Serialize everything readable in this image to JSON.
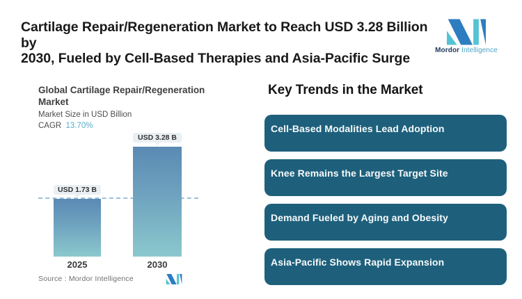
{
  "colors": {
    "banner_bg": "#1e607c",
    "accent_cagr": "#58abc8",
    "bar_gradient_top": "#5a8ab4",
    "bar_gradient_bottom": "#8bc8cd",
    "dashed_reference_line": "#9cc0da",
    "value_label_bg": "#e9eff3",
    "logo_blue": "#2e7dc0",
    "logo_teal": "#56c3d4"
  },
  "header": {
    "title_line1": "Cartilage Repair/Regeneration Market to Reach USD 3.28 Billion by",
    "title_line2": "2030, Fueled by Cell-Based Therapies and Asia-Pacific Surge",
    "logo": {
      "primary": "Mordor",
      "secondary": "Intelligence"
    }
  },
  "chart": {
    "title_line1": "Global Cartilage Repair/Regeneration",
    "title_line2": "Market",
    "subtitle": "Market Size in USD Billion",
    "cagr_label": "CAGR",
    "cagr_value": "13.70%",
    "source_label": "Source :  Mordor Intelligence"
  },
  "chart_data": {
    "type": "bar",
    "title": "Global Cartilage Repair/Regeneration Market",
    "subtitle": "Market Size in USD Billion",
    "unit": "USD Billion",
    "cagr": "13.70%",
    "categories": [
      "2025",
      "2030"
    ],
    "values": [
      1.73,
      3.28
    ],
    "value_labels": [
      "USD 1.73 B",
      "USD 3.28 B"
    ],
    "reference_line": 1.73,
    "ylim": [
      0,
      3.28
    ],
    "grid": false,
    "legend": false
  },
  "trends": {
    "heading": "Key Trends in the Market",
    "items": [
      {
        "label": "Cell-Based Modalities Lead Adoption"
      },
      {
        "label": "Knee Remains the Largest Target Site"
      },
      {
        "label": "Demand Fueled by Aging and Obesity"
      },
      {
        "label": "Asia-Pacific Shows Rapid Expansion"
      }
    ]
  }
}
